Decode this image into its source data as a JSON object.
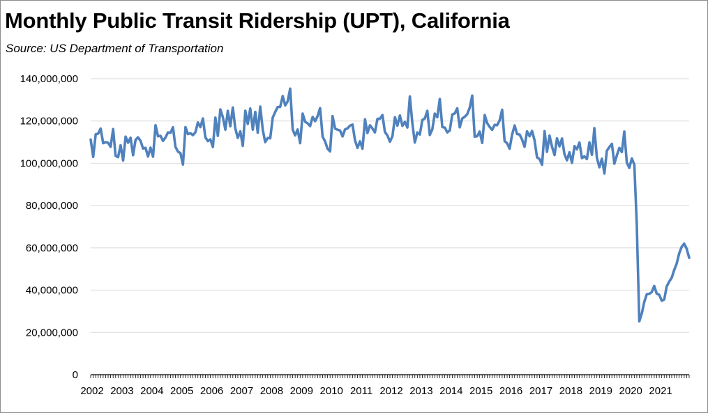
{
  "title": "Monthly Public Transit Ridership (UPT), California",
  "subtitle": "Source:  US Department of Transportation",
  "chart_data": {
    "type": "line",
    "title": "Monthly Public Transit Ridership (UPT), California",
    "subtitle": "Source:  US Department of Transportation",
    "xlabel": "",
    "ylabel": "",
    "ylim": [
      0,
      140000000
    ],
    "xlim": [
      2002,
      2022
    ],
    "grid": "horizontal",
    "legend": "none",
    "line_color": "#4f81bd",
    "y_ticks": [
      0,
      20000000,
      40000000,
      60000000,
      80000000,
      100000000,
      120000000,
      140000000
    ],
    "y_tick_labels": [
      "0",
      "20,000,000",
      "40,000,000",
      "60,000,000",
      "80,000,000",
      "100,000,000",
      "120,000,000",
      "140,000,000"
    ],
    "x_tick_labels": [
      "2002",
      "2003",
      "2004",
      "2005",
      "2006",
      "2007",
      "2008",
      "2009",
      "2010",
      "2011",
      "2012",
      "2013",
      "2014",
      "2015",
      "2016",
      "2017",
      "2018",
      "2019",
      "2020",
      "2021"
    ],
    "series": [
      {
        "values": [
          111200000,
          103000000,
          113700000,
          114000000,
          116400000,
          109500000,
          110000000,
          109700000,
          107800000,
          116200000,
          103500000,
          102900000,
          108500000,
          101300000,
          112600000,
          109700000,
          112100000,
          103800000,
          111000000,
          112300000,
          110600000,
          107000000,
          107300000,
          103200000,
          107400000,
          103100000,
          118000000,
          112800000,
          113000000,
          110600000,
          112200000,
          114600000,
          114400000,
          117000000,
          107800000,
          105500000,
          104800000,
          99400000,
          117100000,
          113800000,
          114200000,
          113300000,
          114600000,
          119300000,
          117100000,
          121200000,
          112300000,
          110500000,
          111300000,
          107700000,
          121600000,
          113000000,
          125500000,
          121800000,
          115900000,
          124800000,
          117500000,
          126400000,
          116500000,
          112000000,
          115100000,
          108200000,
          124800000,
          118600000,
          125900000,
          115900000,
          124300000,
          114500000,
          126800000,
          115900000,
          110000000,
          112000000,
          111800000,
          121600000,
          124300000,
          126600000,
          126700000,
          131800000,
          127400000,
          129300000,
          135300000,
          116000000,
          113200000,
          116000000,
          109500000,
          123500000,
          119600000,
          118900000,
          117600000,
          121900000,
          119900000,
          122300000,
          126100000,
          112600000,
          110400000,
          106900000,
          105600000,
          122300000,
          116400000,
          115900000,
          115500000,
          112700000,
          116000000,
          116500000,
          117800000,
          118300000,
          110900000,
          107300000,
          110400000,
          106900000,
          120800000,
          114300000,
          118000000,
          116400000,
          114600000,
          121000000,
          121100000,
          122800000,
          114800000,
          113200000,
          110200000,
          112800000,
          121800000,
          117800000,
          122600000,
          117700000,
          119600000,
          116900000,
          131600000,
          118800000,
          109800000,
          114600000,
          113600000,
          120500000,
          121200000,
          124800000,
          113400000,
          116100000,
          123500000,
          121800000,
          130400000,
          117100000,
          116900000,
          114600000,
          115500000,
          123100000,
          123600000,
          126000000,
          117000000,
          121200000,
          122000000,
          123200000,
          126300000,
          132000000,
          112600000,
          112800000,
          115000000,
          109600000,
          122800000,
          119000000,
          117200000,
          115800000,
          118200000,
          118000000,
          120300000,
          125300000,
          110500000,
          109500000,
          106900000,
          113600000,
          117900000,
          113800000,
          113600000,
          111200000,
          107800000,
          115100000,
          112800000,
          115300000,
          110900000,
          102800000,
          102000000,
          99300000,
          115200000,
          105400000,
          113100000,
          107800000,
          103900000,
          111800000,
          108000000,
          111700000,
          104400000,
          101400000,
          105200000,
          100200000,
          108100000,
          106600000,
          109800000,
          102400000,
          103300000,
          102000000,
          109900000,
          104000000,
          116600000,
          102600000,
          98100000,
          102200000,
          95200000,
          105900000,
          107700000,
          109200000,
          99800000,
          103700000,
          107300000,
          105300000,
          115000000,
          100400000,
          97800000,
          102300000,
          99300000,
          71000000,
          25200000,
          29000000,
          34500000,
          38000000,
          38200000,
          39100000,
          42000000,
          38300000,
          37800000,
          35000000,
          35600000,
          41800000,
          44000000,
          45900000,
          49500000,
          52500000,
          57400000,
          60500000,
          62000000,
          59600000,
          55300000
        ]
      }
    ]
  }
}
